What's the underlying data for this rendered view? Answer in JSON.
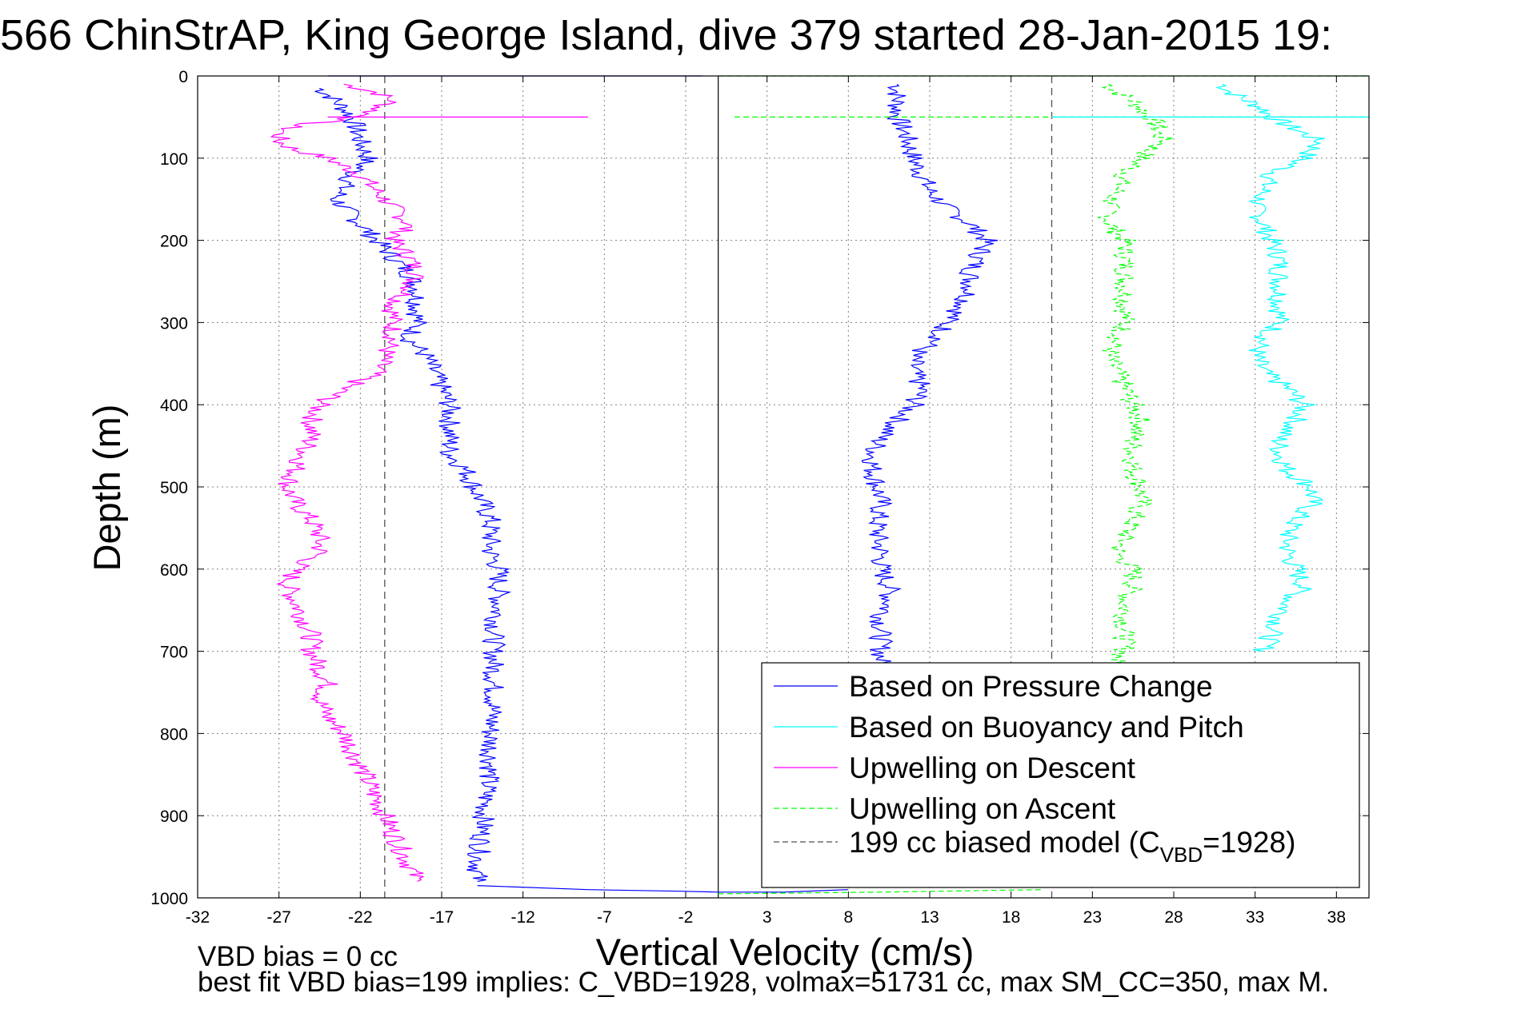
{
  "chart_data": {
    "type": "line",
    "title": "566 ChinStrAP, King George Island, dive 379 started 28-Jan-2015 19:",
    "xlabel": "Vertical Velocity (cm/s)",
    "ylabel": "Depth (m)",
    "xlim": [
      -32,
      40
    ],
    "ylim": [
      0,
      1000
    ],
    "y_reversed": true,
    "grid": true,
    "x_ticks": [
      -32,
      -27,
      -22,
      -17,
      -12,
      -7,
      -2,
      3,
      8,
      13,
      18,
      23,
      28,
      33,
      38
    ],
    "y_ticks": [
      0,
      100,
      200,
      300,
      400,
      500,
      600,
      700,
      800,
      900,
      1000
    ],
    "legend_position": "bottom-right",
    "colors": {
      "pressure": "#0000ff",
      "buoyancy": "#00ffff",
      "descent": "#ff00ff",
      "ascent": "#00ff00",
      "model": "#505050",
      "zero": "#000000"
    },
    "model_line_x": [
      -20.5,
      20.5
    ],
    "zero_line_x": 0,
    "series": [
      {
        "key": "pressure_desc",
        "color": "#0000ff",
        "style": "solid",
        "points": [
          [
            -24.5,
            15
          ],
          [
            -23.5,
            30
          ],
          [
            -22.5,
            50
          ],
          [
            -22,
            80
          ],
          [
            -21.5,
            100
          ],
          [
            -22.5,
            120
          ],
          [
            -23.5,
            150
          ],
          [
            -22,
            180
          ],
          [
            -21,
            200
          ],
          [
            -20,
            220
          ],
          [
            -19,
            240
          ],
          [
            -18.5,
            260
          ],
          [
            -18.5,
            280
          ],
          [
            -18.5,
            300
          ],
          [
            -19,
            320
          ],
          [
            -18,
            340
          ],
          [
            -17.5,
            360
          ],
          [
            -17,
            380
          ],
          [
            -16.5,
            400
          ],
          [
            -16.5,
            420
          ],
          [
            -16.5,
            440
          ],
          [
            -16.5,
            460
          ],
          [
            -15.5,
            480
          ],
          [
            -15,
            500
          ],
          [
            -14.5,
            520
          ],
          [
            -14,
            540
          ],
          [
            -14,
            560
          ],
          [
            -14,
            580
          ],
          [
            -13.5,
            600
          ],
          [
            -13.5,
            640
          ],
          [
            -13.8,
            680
          ],
          [
            -13.8,
            720
          ],
          [
            -13.8,
            760
          ],
          [
            -14,
            800
          ],
          [
            -14,
            840
          ],
          [
            -14.3,
            880
          ],
          [
            -14.5,
            920
          ],
          [
            -14.8,
            960
          ],
          [
            -14.8,
            980
          ]
        ]
      },
      {
        "key": "pressure_asc",
        "color": "#0000ff",
        "style": "solid",
        "points": [
          [
            11,
            10
          ],
          [
            11,
            30
          ],
          [
            11,
            50
          ],
          [
            11.5,
            70
          ],
          [
            12,
            100
          ],
          [
            12.5,
            120
          ],
          [
            13,
            140
          ],
          [
            14,
            160
          ],
          [
            15.5,
            180
          ],
          [
            16.5,
            200
          ],
          [
            16,
            220
          ],
          [
            15.5,
            240
          ],
          [
            15.5,
            260
          ],
          [
            15,
            280
          ],
          [
            14,
            300
          ],
          [
            13.5,
            320
          ],
          [
            12,
            340
          ],
          [
            12,
            360
          ],
          [
            12.5,
            380
          ],
          [
            12,
            400
          ],
          [
            11,
            420
          ],
          [
            10,
            440
          ],
          [
            9.5,
            460
          ],
          [
            9.5,
            480
          ],
          [
            9.8,
            500
          ],
          [
            10,
            520
          ],
          [
            9.8,
            540
          ],
          [
            9.8,
            560
          ],
          [
            10,
            580
          ],
          [
            10,
            600
          ],
          [
            10.5,
            620
          ],
          [
            10.5,
            640
          ],
          [
            10,
            660
          ],
          [
            10,
            680
          ],
          [
            10,
            700
          ],
          [
            10,
            720
          ]
        ]
      },
      {
        "key": "buoyancy_asc",
        "color": "#00ffff",
        "style": "solid",
        "points": [
          [
            31,
            10
          ],
          [
            31.5,
            20
          ],
          [
            32.5,
            30
          ],
          [
            33.5,
            40
          ],
          [
            34,
            50
          ],
          [
            35,
            60
          ],
          [
            36,
            70
          ],
          [
            37,
            80
          ],
          [
            36.5,
            90
          ],
          [
            36,
            100
          ],
          [
            34,
            120
          ],
          [
            33.5,
            140
          ],
          [
            33,
            160
          ],
          [
            33.5,
            180
          ],
          [
            34,
            200
          ],
          [
            34.5,
            220
          ],
          [
            34.5,
            240
          ],
          [
            34.5,
            260
          ],
          [
            34.5,
            280
          ],
          [
            34.5,
            300
          ],
          [
            33.5,
            320
          ],
          [
            33,
            340
          ],
          [
            33.5,
            360
          ],
          [
            35,
            380
          ],
          [
            36,
            400
          ],
          [
            35.5,
            420
          ],
          [
            34.5,
            440
          ],
          [
            34.5,
            460
          ],
          [
            35,
            480
          ],
          [
            36.5,
            500
          ],
          [
            36.5,
            520
          ],
          [
            35.5,
            540
          ],
          [
            35,
            560
          ],
          [
            35,
            580
          ],
          [
            35.5,
            600
          ],
          [
            36,
            620
          ],
          [
            35,
            640
          ],
          [
            34.5,
            660
          ],
          [
            34,
            680
          ],
          [
            33.5,
            700
          ]
        ]
      },
      {
        "key": "descent",
        "color": "#ff00ff",
        "style": "solid",
        "points": [
          [
            -23,
            10
          ],
          [
            -21,
            20
          ],
          [
            -20,
            30
          ],
          [
            -21,
            40
          ],
          [
            -22,
            50
          ],
          [
            -26,
            60
          ],
          [
            -27,
            70
          ],
          [
            -27,
            80
          ],
          [
            -26,
            90
          ],
          [
            -24,
            100
          ],
          [
            -22,
            120
          ],
          [
            -21,
            140
          ],
          [
            -20,
            160
          ],
          [
            -19,
            180
          ],
          [
            -20,
            200
          ],
          [
            -19,
            220
          ],
          [
            -18.5,
            240
          ],
          [
            -19,
            260
          ],
          [
            -20,
            280
          ],
          [
            -20,
            300
          ],
          [
            -20,
            320
          ],
          [
            -20.5,
            340
          ],
          [
            -21,
            360
          ],
          [
            -23,
            380
          ],
          [
            -24.5,
            400
          ],
          [
            -25,
            420
          ],
          [
            -25,
            440
          ],
          [
            -25.5,
            460
          ],
          [
            -26,
            480
          ],
          [
            -26.5,
            500
          ],
          [
            -26,
            520
          ],
          [
            -25,
            540
          ],
          [
            -24.5,
            560
          ],
          [
            -24.5,
            580
          ],
          [
            -26,
            600
          ],
          [
            -26.5,
            620
          ],
          [
            -26,
            640
          ],
          [
            -25.5,
            660
          ],
          [
            -25,
            680
          ],
          [
            -25,
            700
          ],
          [
            -24.5,
            720
          ],
          [
            -24,
            740
          ],
          [
            -24.5,
            760
          ],
          [
            -24,
            780
          ],
          [
            -23,
            800
          ],
          [
            -22.5,
            820
          ],
          [
            -22,
            840
          ],
          [
            -21.5,
            860
          ],
          [
            -21,
            880
          ],
          [
            -20.5,
            900
          ],
          [
            -20,
            920
          ],
          [
            -19.5,
            940
          ],
          [
            -19,
            960
          ],
          [
            -18.5,
            980
          ]
        ]
      },
      {
        "key": "ascent",
        "color": "#00ff00",
        "style": "dashed",
        "points": [
          [
            24,
            10
          ],
          [
            24.5,
            20
          ],
          [
            25.5,
            30
          ],
          [
            26,
            40
          ],
          [
            26.5,
            50
          ],
          [
            27,
            60
          ],
          [
            27,
            70
          ],
          [
            27.5,
            80
          ],
          [
            26.5,
            90
          ],
          [
            26,
            100
          ],
          [
            25,
            120
          ],
          [
            24.5,
            140
          ],
          [
            24,
            160
          ],
          [
            24,
            180
          ],
          [
            25,
            200
          ],
          [
            25,
            220
          ],
          [
            25,
            240
          ],
          [
            25,
            260
          ],
          [
            25,
            280
          ],
          [
            25,
            300
          ],
          [
            24.5,
            320
          ],
          [
            24,
            340
          ],
          [
            24.5,
            360
          ],
          [
            25,
            380
          ],
          [
            25.5,
            400
          ],
          [
            26,
            420
          ],
          [
            25.5,
            440
          ],
          [
            25.5,
            460
          ],
          [
            25.5,
            480
          ],
          [
            26,
            500
          ],
          [
            26,
            520
          ],
          [
            25.5,
            540
          ],
          [
            25,
            560
          ],
          [
            24.5,
            580
          ],
          [
            25.5,
            600
          ],
          [
            25.5,
            620
          ],
          [
            25,
            640
          ],
          [
            25,
            660
          ],
          [
            25,
            680
          ],
          [
            25,
            700
          ],
          [
            24,
            720
          ]
        ]
      }
    ],
    "spikes": [
      {
        "color": "#ff00ff",
        "style": "solid",
        "y": 50,
        "x1": -24,
        "x2": -8
      },
      {
        "color": "#00ff00",
        "style": "dashed",
        "y": 50,
        "x1": 1,
        "x2": 40
      },
      {
        "color": "#00ffff",
        "style": "solid",
        "y": 50,
        "x1": 20.5,
        "x2": 40
      }
    ],
    "surface_and_bottom": [
      {
        "color": "#0000ff",
        "style": "solid",
        "points": [
          [
            -24,
            0
          ],
          [
            -1,
            0
          ]
        ]
      },
      {
        "color": "#00ff00",
        "style": "dashed",
        "points": [
          [
            0,
            0
          ],
          [
            40,
            0
          ]
        ]
      },
      {
        "color": "#0000ff",
        "style": "solid",
        "points": [
          [
            -14.8,
            985
          ],
          [
            -8,
            990
          ],
          [
            -2,
            992
          ],
          [
            0,
            993
          ],
          [
            4,
            993
          ],
          [
            8,
            990
          ]
        ]
      },
      {
        "color": "#00ff00",
        "style": "dashed",
        "points": [
          [
            0,
            995
          ],
          [
            10,
            993
          ],
          [
            20,
            990
          ]
        ]
      }
    ],
    "legend": [
      {
        "label": "Based on Pressure Change",
        "color": "#0000ff",
        "style": "solid"
      },
      {
        "label": "Based on Buoyancy and Pitch",
        "color": "#00ffff",
        "style": "solid"
      },
      {
        "label": "Upwelling on Descent",
        "color": "#ff00ff",
        "style": "solid"
      },
      {
        "label": "Upwelling on Ascent",
        "color": "#00ff00",
        "style": "dashed"
      },
      {
        "label": "199 cc biased model (C",
        "sub": "VBD",
        "suffix": "=1928)",
        "color": "#505050",
        "style": "dashed"
      }
    ]
  },
  "footer": {
    "line1": "VBD bias = 0 cc",
    "line2": "best fit VBD bias=199 implies: C_VBD=1928, volmax=51731 cc, max SM_CC=350, max M."
  }
}
